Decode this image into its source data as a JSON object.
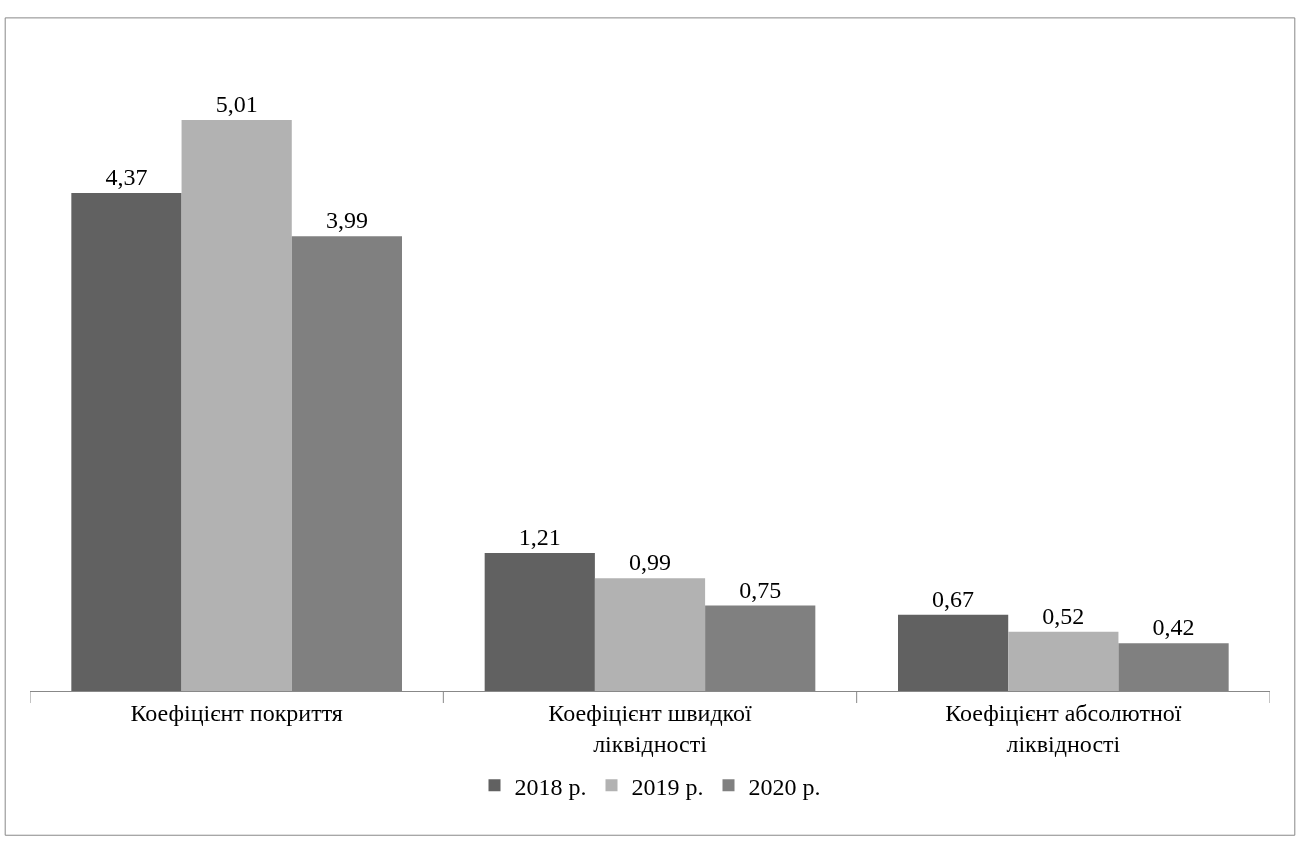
{
  "chart_data": {
    "type": "bar",
    "categories": [
      "Коефіцієнт покриття",
      "Коефіцієнт швидкої ліквідності",
      "Коефіцієнт абсолютної ліквідності"
    ],
    "series": [
      {
        "name": "2018 р.",
        "color": "#616161",
        "values": [
          4.37,
          1.21,
          0.67
        ],
        "value_labels": [
          "4,37",
          "1,21",
          "0,67"
        ]
      },
      {
        "name": "2019 р.",
        "color": "#b2b2b2",
        "values": [
          5.01,
          0.99,
          0.52
        ],
        "value_labels": [
          "5,01",
          "0,99",
          "0,52"
        ]
      },
      {
        "name": "2020 р.",
        "color": "#808080",
        "values": [
          3.99,
          0.75,
          0.42
        ],
        "value_labels": [
          "3,99",
          "0,75",
          "0,42"
        ]
      }
    ],
    "legend": "bottom"
  }
}
